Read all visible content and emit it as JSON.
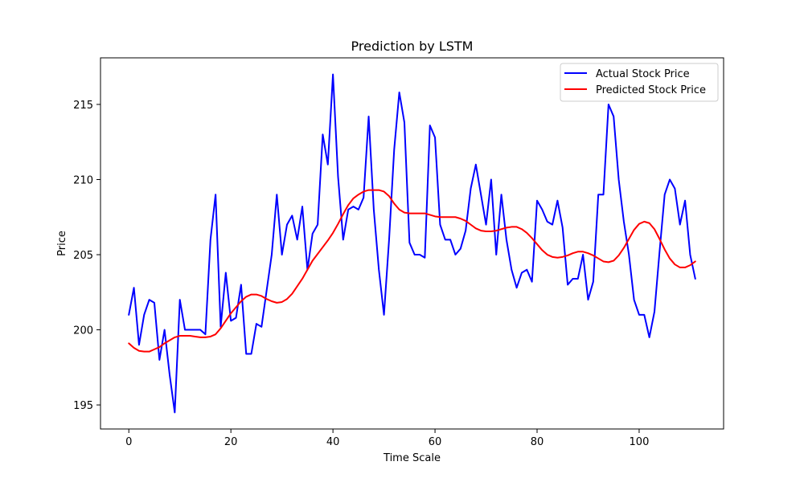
{
  "chart_data": {
    "type": "line",
    "title": "Prediction by LSTM",
    "xlabel": "Time Scale",
    "ylabel": "Price",
    "xlim": [
      -5.55,
      116.55
    ],
    "ylim": [
      193.4,
      218.1
    ],
    "x_ticks": [
      0,
      20,
      40,
      60,
      80,
      100
    ],
    "y_ticks": [
      195,
      200,
      205,
      210,
      215
    ],
    "grid": false,
    "legend_position": "upper right",
    "series": [
      {
        "name": "Actual Stock Price",
        "color": "#0000ff",
        "values": [
          201.0,
          202.8,
          199.0,
          201.0,
          202.0,
          201.8,
          198.0,
          200.0,
          197.0,
          194.5,
          202.0,
          200.0,
          200.0,
          200.0,
          200.0,
          199.7,
          206.0,
          209.0,
          200.2,
          203.8,
          200.6,
          200.8,
          203.0,
          198.4,
          198.4,
          200.4,
          200.2,
          202.6,
          205.0,
          209.0,
          205.0,
          207.0,
          207.6,
          206.0,
          208.2,
          204.0,
          206.4,
          207.0,
          213.0,
          211.0,
          217.0,
          210.2,
          206.0,
          208.0,
          208.2,
          208.0,
          208.8,
          214.2,
          208.0,
          204.0,
          201.0,
          206.0,
          212.0,
          215.8,
          213.8,
          205.8,
          205.0,
          205.0,
          204.8,
          213.6,
          212.8,
          207.0,
          206.0,
          206.0,
          205.0,
          205.4,
          206.6,
          209.4,
          211.0,
          209.0,
          207.0,
          210.0,
          205.0,
          209.0,
          206.0,
          204.0,
          202.8,
          203.8,
          204.0,
          203.2,
          208.6,
          208.0,
          207.2,
          207.0,
          208.6,
          206.8,
          203.0,
          203.4,
          203.4,
          205.0,
          202.0,
          203.2,
          209.0,
          209.0,
          215.0,
          214.2,
          210.0,
          207.2,
          205.0,
          202.0,
          201.0,
          201.0,
          199.5,
          201.2,
          205.2,
          209.0,
          210.0,
          209.4,
          207.0,
          208.6,
          205.0,
          203.4
        ]
      },
      {
        "name": "Predicted Stock Price",
        "color": "#ff0000",
        "values": [
          199.1,
          198.8,
          198.6,
          198.55,
          198.55,
          198.7,
          198.85,
          199.1,
          199.3,
          199.5,
          199.6,
          199.6,
          199.6,
          199.55,
          199.5,
          199.5,
          199.55,
          199.7,
          200.1,
          200.6,
          201.1,
          201.5,
          201.9,
          202.2,
          202.35,
          202.35,
          202.25,
          202.05,
          201.9,
          201.8,
          201.85,
          202.05,
          202.4,
          202.9,
          203.4,
          204.0,
          204.6,
          205.05,
          205.5,
          205.95,
          206.45,
          207.05,
          207.7,
          208.3,
          208.75,
          209.0,
          209.2,
          209.3,
          209.3,
          209.3,
          209.2,
          208.9,
          208.4,
          208.0,
          207.8,
          207.75,
          207.75,
          207.75,
          207.75,
          207.65,
          207.55,
          207.5,
          207.5,
          207.5,
          207.5,
          207.4,
          207.25,
          207.0,
          206.75,
          206.6,
          206.55,
          206.55,
          206.6,
          206.7,
          206.8,
          206.85,
          206.85,
          206.7,
          206.45,
          206.1,
          205.7,
          205.3,
          205.0,
          204.85,
          204.8,
          204.85,
          204.95,
          205.1,
          205.2,
          205.2,
          205.1,
          204.95,
          204.75,
          204.55,
          204.5,
          204.6,
          204.95,
          205.45,
          206.05,
          206.65,
          207.05,
          207.2,
          207.1,
          206.7,
          206.05,
          205.35,
          204.75,
          204.35,
          204.15,
          204.15,
          204.3,
          204.55
        ]
      }
    ]
  }
}
